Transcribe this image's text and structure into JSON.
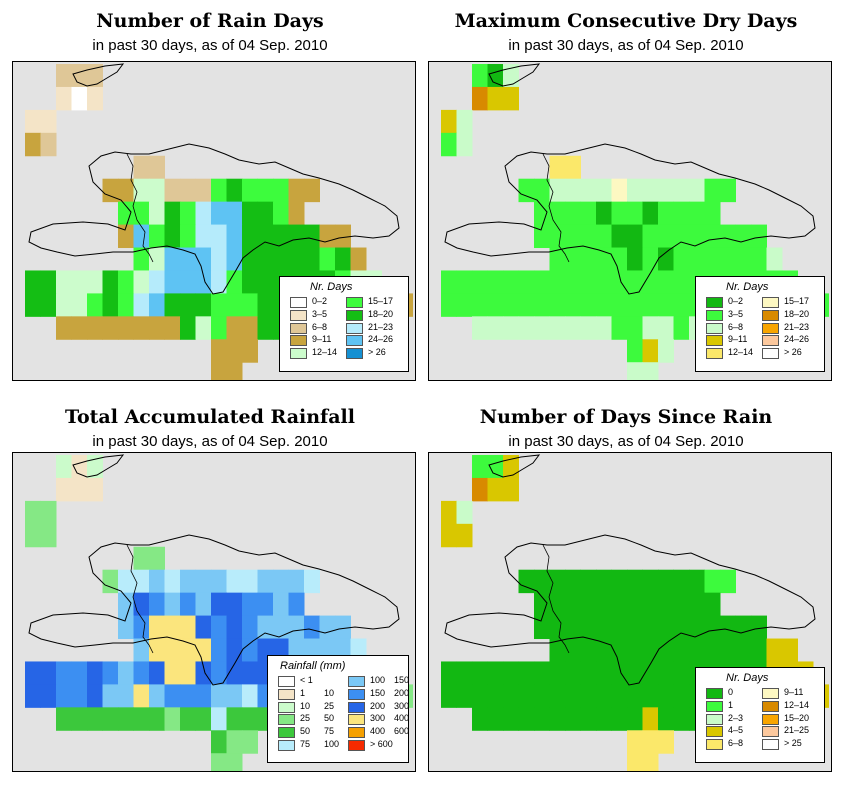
{
  "panels": [
    {
      "id": "rain-days",
      "title": "Number of Rain Days",
      "subtitle": "in past 30 days, as of  04 Sep. 2010",
      "legend": {
        "title": "Nr. Days",
        "left": [
          {
            "label": "0–2",
            "color": "#ffffff"
          },
          {
            "label": "3–5",
            "color": "#f4e4c7"
          },
          {
            "label": "6–8",
            "color": "#dfc797"
          },
          {
            "label": "9–11",
            "color": "#c8a43e"
          },
          {
            "label": "12–14",
            "color": "#ccfccc"
          }
        ],
        "right": [
          {
            "label": "15–17",
            "color": "#3dfc3d"
          },
          {
            "label": "18–20",
            "color": "#14be14"
          },
          {
            "label": "21–23",
            "color": "#b5ebfb"
          },
          {
            "label": "24–26",
            "color": "#5ec3f3"
          },
          {
            "label": "> 26",
            "color": "#1590d2"
          }
        ]
      }
    },
    {
      "id": "dry-days",
      "title": "Maximum Consecutive Dry Days",
      "subtitle": "in past 30 days, as of  04 Sep. 2010",
      "legend": {
        "title": "Nr. Days",
        "left": [
          {
            "label": "0–2",
            "color": "#12b812"
          },
          {
            "label": "3–5",
            "color": "#3dfa3d"
          },
          {
            "label": "6–8",
            "color": "#c9fbc9"
          },
          {
            "label": "9–11",
            "color": "#d9c700"
          },
          {
            "label": "12–14",
            "color": "#fbe86a"
          }
        ],
        "right": [
          {
            "label": "15–17",
            "color": "#fdf8c2"
          },
          {
            "label": "18–20",
            "color": "#d88a00"
          },
          {
            "label": "21–23",
            "color": "#f8a500"
          },
          {
            "label": "24–26",
            "color": "#fcc89d"
          },
          {
            "label": "> 26",
            "color": "#ffffff"
          }
        ]
      }
    },
    {
      "id": "rainfall",
      "title": "Total Accumulated Rainfall",
      "subtitle": "in past 30 days, as of  04 Sep. 2010",
      "legend": {
        "title": "Rainfall (mm)",
        "left": [
          {
            "label": "< 1",
            "label2": "",
            "color": "#ffffff"
          },
          {
            "label": "1",
            "label2": "10",
            "color": "#f4e4c7"
          },
          {
            "label": "10",
            "label2": "25",
            "color": "#cbfbcb"
          },
          {
            "label": "25",
            "label2": "50",
            "color": "#85e885"
          },
          {
            "label": "50",
            "label2": "75",
            "color": "#3cc83c"
          },
          {
            "label": "75",
            "label2": "100",
            "color": "#b8ecfb"
          }
        ],
        "right": [
          {
            "label": "100",
            "label2": "150",
            "color": "#7bc8f5"
          },
          {
            "label": "150",
            "label2": "200",
            "color": "#3c8ff2"
          },
          {
            "label": "200",
            "label2": "300",
            "color": "#2665e6"
          },
          {
            "label": "300",
            "label2": "400",
            "color": "#fbe57d"
          },
          {
            "label": "400",
            "label2": "600",
            "color": "#f5a000"
          },
          {
            "label": "> 600",
            "label2": "",
            "color": "#f52a00"
          }
        ]
      }
    },
    {
      "id": "since-rain",
      "title": "Number of Days Since Rain",
      "subtitle": "in past 30 days, as of  04 Sep. 2010",
      "legend": {
        "title": "Nr. Days",
        "left": [
          {
            "label": "0",
            "color": "#12b812"
          },
          {
            "label": "1",
            "color": "#3dfa3d"
          },
          {
            "label": "2–3",
            "color": "#c9fbc9"
          },
          {
            "label": "4–5",
            "color": "#d9c700"
          },
          {
            "label": "6–8",
            "color": "#fbe86a"
          }
        ],
        "right": [
          {
            "label": "9–11",
            "color": "#fdf8c2"
          },
          {
            "label": "12–14",
            "color": "#d88a00"
          },
          {
            "label": "15–20",
            "color": "#f8a500"
          },
          {
            "label": "21–25",
            "color": "#fcc89d"
          },
          {
            "label": "> 25",
            "color": "#ffffff"
          }
        ]
      }
    }
  ],
  "grids": {
    "rain-days": [
      ". . 2 2 2 . . . . . . . . . . . . . . . . . . . . . . . . .",
      ". . 1 0 1 . . . . . . . . . . . . . . . . . . . . . . . . .",
      "1 1 . . . . . . . . . . . . . . . . . . . . . . . . . . . .",
      "3 2 . . . . . . . . . . . . . . . . . . . . . . . . . . . .",
      ". . . . . . . 2 2 . . . . . . . . . . . . . . . . . . . . .",
      ". . . . . 3 3 4 4 2 2 2 5 6 5 5 5 3 3 . . . . . . . . . . .",
      ". . . . . . 5 5 4 6 5 7 8 8 6 6 5 3 . . . . . . . . . . . .",
      ". . . . . . 3 8 5 6 5 7 7 8 6 6 6 6 6 3 3 . . . . . . . . .",
      ". . . . . . . 5 4 8 8 8 7 8 6 6 6 6 6 5 6 3 . . . . . . . .",
      "6 6 4 4 4 6 5 4 7 8 8 8 7 5 6 6 6 6 6 6 5 4 4 . . . . . . .",
      "6 6 4 4 5 6 5 7 8 6 6 6 5 5 5 6 6 6 6 6 5 4 4 3 3 . . . . .",
      ". . 3 3 3 3 3 3 3 3 6 4 5 3 3 6 6 6 . . . . . . . . . . . .",
      ". . . . . . . . . . . . 3 3 3 . . . . . . . . . . . . . . .",
      ". . . . . . . . . . . . 3 3 . . . . . . . . . . . . . . . ."
    ],
    "dry-days": [
      ". . 1 0 2 . . . . . . . . . . . . . . . . . . . . . . . . .",
      ". . 6 3 3 . . . . . . . . . . . . . . . . . . . . . . . . .",
      "3 2 . . . . . . . . . . . . . . . . . . . . . . . . . . . .",
      "1 2 . . . . . . . . . . . . . . . . . . . . . . . . . . . .",
      ". . . . . . . 4 4 . . . . . . . . . . . . . . . . . . . . .",
      ". . . . . 1 1 2 2 2 2 5 2 2 2 2 2 1 1 . . . . . . . . . . .",
      ". . . . . . 1 1 1 1 0 1 1 0 1 1 1 1 . . . . . . . . . . . .",
      ". . . . . . 1 1 1 1 1 0 0 1 1 1 1 1 1 1 1 . . . . . . . . .",
      ". . . . . . . 1 1 1 1 1 0 1 0 1 1 1 1 1 1 2 . . . . . . . .",
      "1 1 1 1 1 1 1 1 1 1 1 1 1 1 1 1 1 1 1 1 1 1 1 . . . . . . .",
      "1 1 1 1 1 1 1 1 1 1 1 1 1 1 1 1 1 1 1 1 1 1 1 1 1 . . . . .",
      ". . 2 2 2 2 2 2 2 2 2 1 1 2 2 1 2 2 . . . . . . . . . . . .",
      ". . . . . . . . . . . . 1 3 2 . . . . . . . . . . . . . . .",
      ". . . . . . . . . . . . 2 2 . . . . . . . . . . . . . . . ."
    ],
    "rainfall": [
      ". . 2 1 2 . . . . . . . . . . . . . . . . . . . . . . . . .",
      ". . 1 1 1 . . . . . . . . . . . . . . . . . . . . . . . . .",
      "3 3 . . . . . . . . . . . . . . . . . . . . . . . . . . . .",
      "3 3 . . . . . . . . . . . . . . . . . . . . . . . . . . . .",
      ". . . . . . . 3 3 . . . . . . . . . . . . . . . . . . . . .",
      ". . . . . 3 5 5 6 5 6 6 6 5 5 6 6 6 5 . . . . . . . . . . .",
      ". . . . . . 6 8 7 6 7 6 8 8 7 7 6 7 . . . . . . . . . . . .",
      ". . . . . . 6 7 9 9 9 8 7 8 7 6 6 6 7 6 6 . . . . . . . . .",
      ". . . . . . . 6 9 9 9 9 7 8 7 8 8 6 6 6 6 5 . . . . . . . .",
      "8 8 7 7 8 7 6 7 8 9 9 8 7 8 8 8 8 8 7 7 6 6 5 . . . . . . .",
      "8 8 7 7 8 6 6 9 6 7 7 7 6 6 5 7 7 6 6 5 5 4 3 3 3 . . . . .",
      ". . 4 4 4 4 4 4 4 3 4 4 5 4 4 4 3 3 . . . . . . . . . . . .",
      ". . . . . . . . . . . . 4 3 3 . . . . . . . . . . . . . . .",
      ". . . . . . . . . . . . 3 3 . . . . . . . . . . . . . . . ."
    ],
    "since-rain": [
      ". . 1 1 3 . . . . . . . . . . . . . . . . . . . . . . . . .",
      ". . 6 3 3 . . . . . . . . . . . . . . . . . . . . . . . . .",
      "3 2 . . . . . . . . . . . . . . . . . . . . . . . . . . . .",
      "3 3 . . . . . . . . . . . . . . . . . . . . . . . . . . . .",
      ". . . . . . . . . . . . . . . . . . . . . . . . . . . . . .",
      ". . . . . 0 0 0 0 0 0 0 0 0 0 0 0 1 1 . . . . . . . . . . .",
      ". . . . . . 0 0 0 0 0 0 0 0 0 0 0 0 . . . . . . . . . . . .",
      ". . . . . . 0 0 0 0 0 0 0 0 0 0 0 0 0 0 0 . . . . . . . . .",
      ". . . . . . . 0 0 0 0 0 0 0 0 0 0 0 0 0 0 3 3 . . . . . . .",
      "0 0 0 0 0 0 0 0 0 0 0 0 0 0 0 0 0 0 0 0 0 3 3 3 . . . . . .",
      "0 0 0 0 0 0 0 0 0 0 0 0 0 0 0 0 0 0 0 0 0 3 3 3 3 . . . . .",
      ". . 0 0 0 0 0 0 0 0 0 0 0 3 0 0 0 0 . . . . . . . . . . . .",
      ". . . . . . . . . . . . 4 4 4 . . . . . . . . . . . . . . .",
      ". . . . . . . . . . . . 4 4 . . . . . . . . . . . . . . . ."
    ]
  }
}
